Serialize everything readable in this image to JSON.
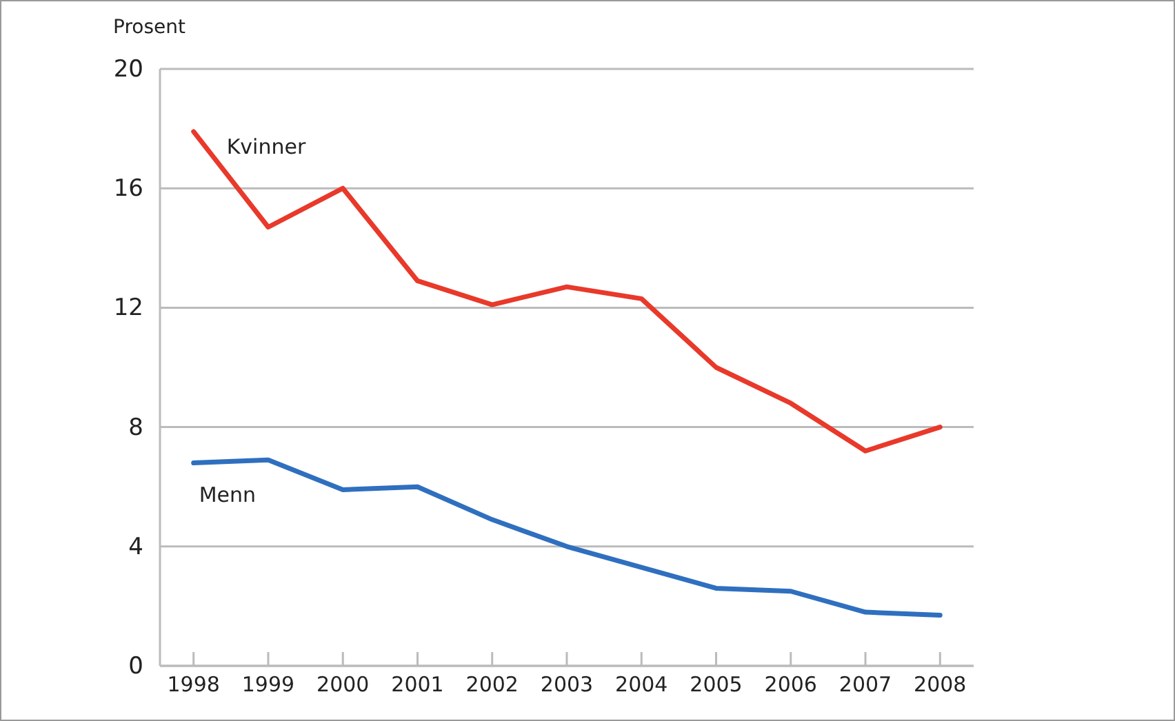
{
  "chart_data": {
    "type": "line",
    "ylabel": "Prosent",
    "categories": [
      "1998",
      "1999",
      "2000",
      "2001",
      "2002",
      "2003",
      "2004",
      "2005",
      "2006",
      "2007",
      "2008"
    ],
    "series": [
      {
        "name": "Kvinner",
        "color": "#e8392a",
        "values": [
          17.9,
          14.7,
          16.0,
          12.9,
          12.1,
          12.7,
          12.3,
          10.0,
          8.8,
          7.2,
          8.0
        ]
      },
      {
        "name": "Menn",
        "color": "#2f6fbf",
        "values": [
          6.8,
          6.9,
          5.9,
          6.0,
          4.9,
          4.0,
          3.3,
          2.6,
          2.5,
          1.8,
          1.7
        ]
      }
    ],
    "ylim": [
      0,
      20
    ],
    "yticks": [
      0,
      4,
      8,
      12,
      16,
      20
    ],
    "grid": "y",
    "legend": false,
    "marker": "none",
    "line_style": "solid"
  }
}
